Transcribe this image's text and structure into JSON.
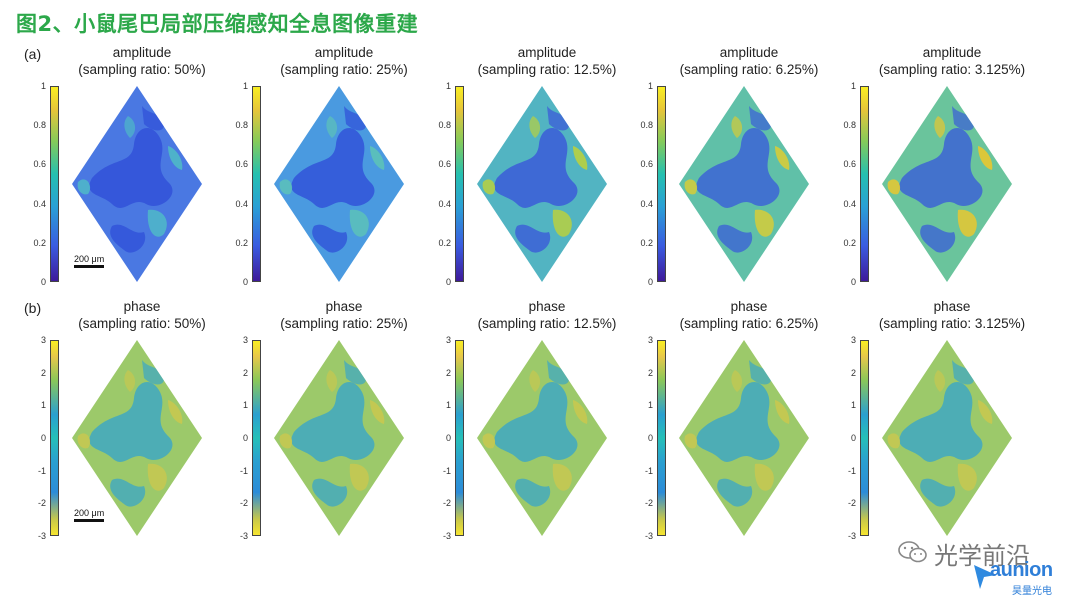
{
  "figure": {
    "title": "图2、小鼠尾巴局部压缩感知全息图像重建",
    "row_a_label": "(a)",
    "row_b_label": "(b)",
    "scale_bar_label": "200 μm"
  },
  "amplitude_panels": [
    {
      "title_line1": "amplitude",
      "title_line2": "(sampling ratio: 50%)"
    },
    {
      "title_line1": "amplitude",
      "title_line2": "(sampling ratio: 25%)"
    },
    {
      "title_line1": "amplitude",
      "title_line2": "(sampling ratio: 12.5%)"
    },
    {
      "title_line1": "amplitude",
      "title_line2": "(sampling ratio: 6.25%)"
    },
    {
      "title_line1": "amplitude",
      "title_line2": "(sampling ratio: 3.125%)"
    }
  ],
  "phase_panels": [
    {
      "title_line1": "phase",
      "title_line2": "(sampling ratio: 50%)"
    },
    {
      "title_line1": "phase",
      "title_line2": "(sampling ratio: 25%)"
    },
    {
      "title_line1": "phase",
      "title_line2": "(sampling ratio: 12.5%)"
    },
    {
      "title_line1": "phase",
      "title_line2": "(sampling ratio: 6.25%)"
    },
    {
      "title_line1": "phase",
      "title_line2": "(sampling ratio: 3.125%)"
    }
  ],
  "amplitude_ticks": [
    "1",
    "0.8",
    "0.6",
    "0.4",
    "0.2",
    "0"
  ],
  "phase_ticks": [
    "3",
    "2",
    "1",
    "0",
    "-1",
    "-2",
    "-3"
  ],
  "watermark": {
    "text": "光学前沿",
    "logo_text": "aunion",
    "logo_subtext": "昊量光电"
  }
}
